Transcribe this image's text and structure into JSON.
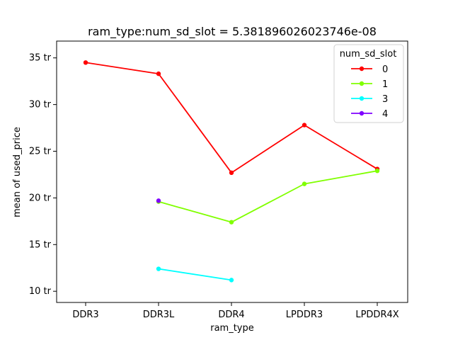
{
  "chart_data": {
    "type": "line",
    "title": "ram_type:num_sd_slot = 5.381896026023746e-08",
    "xlabel": "ram_type",
    "ylabel": "mean of used_price",
    "categories": [
      "DDR3",
      "DDR3L",
      "DDR4",
      "LPDDR3",
      "LPDDR4X"
    ],
    "ylim": [
      8.8,
      36.8
    ],
    "y_ticks": [
      10,
      15,
      20,
      25,
      30,
      35
    ],
    "y_tick_labels": [
      "10 tr",
      "15 tr",
      "20 tr",
      "25 tr",
      "30 tr",
      "35 tr"
    ],
    "grid": false,
    "legend": {
      "title": "num_sd_slot",
      "position": "top-right"
    },
    "series": [
      {
        "name": "0",
        "color": "#ff0000",
        "values": [
          34.5,
          33.3,
          22.7,
          27.8,
          23.1
        ]
      },
      {
        "name": "1",
        "color": "#80ff00",
        "values": [
          null,
          19.6,
          17.4,
          21.5,
          22.9
        ]
      },
      {
        "name": "3",
        "color": "#00ffff",
        "values": [
          null,
          12.4,
          11.2,
          null,
          null
        ]
      },
      {
        "name": "4",
        "color": "#8000ff",
        "values": [
          null,
          19.7,
          null,
          null,
          null
        ]
      }
    ]
  }
}
